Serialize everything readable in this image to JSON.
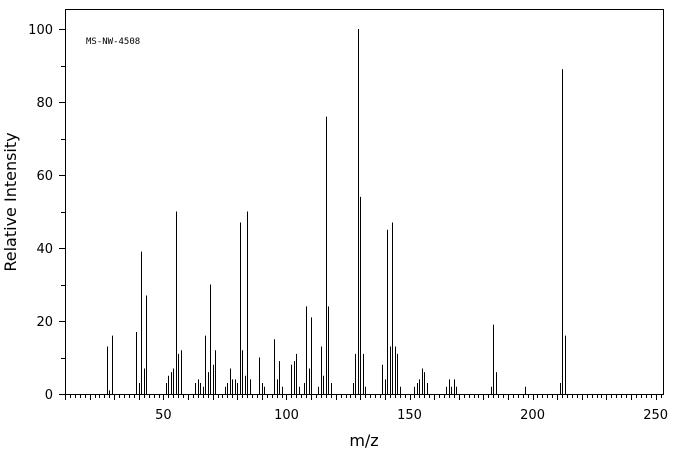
{
  "chart_data": {
    "type": "bar",
    "subtype": "mass-spectrum-stick",
    "annotation": "MS-NW-4508",
    "xlabel": "m/z",
    "ylabel": "Relative Intensity",
    "xlim": [
      10,
      253
    ],
    "ylim": [
      0,
      100
    ],
    "xticks": [
      50,
      100,
      150,
      200,
      250
    ],
    "xtick_labels": [
      "50",
      "100",
      "150",
      "200",
      "250"
    ],
    "yticks": [
      0,
      20,
      40,
      60,
      80,
      100
    ],
    "ytick_labels": [
      "0",
      "20",
      "40",
      "60",
      "80",
      "100"
    ],
    "grid": false,
    "points": [
      {
        "x": 27,
        "y": 13
      },
      {
        "x": 28,
        "y": 1
      },
      {
        "x": 29,
        "y": 16
      },
      {
        "x": 39,
        "y": 17
      },
      {
        "x": 40,
        "y": 3
      },
      {
        "x": 41,
        "y": 39
      },
      {
        "x": 42,
        "y": 7
      },
      {
        "x": 43,
        "y": 27
      },
      {
        "x": 51,
        "y": 3
      },
      {
        "x": 52,
        "y": 5
      },
      {
        "x": 53,
        "y": 6
      },
      {
        "x": 54,
        "y": 7
      },
      {
        "x": 55,
        "y": 50
      },
      {
        "x": 56,
        "y": 11
      },
      {
        "x": 57,
        "y": 12
      },
      {
        "x": 63,
        "y": 3
      },
      {
        "x": 64,
        "y": 4
      },
      {
        "x": 65,
        "y": 3
      },
      {
        "x": 66,
        "y": 2
      },
      {
        "x": 67,
        "y": 16
      },
      {
        "x": 68,
        "y": 6
      },
      {
        "x": 69,
        "y": 30
      },
      {
        "x": 70,
        "y": 8
      },
      {
        "x": 71,
        "y": 12
      },
      {
        "x": 75,
        "y": 2
      },
      {
        "x": 76,
        "y": 3
      },
      {
        "x": 77,
        "y": 7
      },
      {
        "x": 78,
        "y": 4
      },
      {
        "x": 79,
        "y": 4
      },
      {
        "x": 80,
        "y": 3
      },
      {
        "x": 81,
        "y": 47
      },
      {
        "x": 82,
        "y": 12
      },
      {
        "x": 83,
        "y": 5
      },
      {
        "x": 84,
        "y": 50
      },
      {
        "x": 85,
        "y": 4
      },
      {
        "x": 89,
        "y": 10
      },
      {
        "x": 90,
        "y": 3
      },
      {
        "x": 91,
        "y": 2
      },
      {
        "x": 95,
        "y": 15
      },
      {
        "x": 96,
        "y": 4
      },
      {
        "x": 97,
        "y": 9
      },
      {
        "x": 98,
        "y": 2
      },
      {
        "x": 102,
        "y": 8
      },
      {
        "x": 103,
        "y": 9
      },
      {
        "x": 104,
        "y": 11
      },
      {
        "x": 105,
        "y": 2
      },
      {
        "x": 107,
        "y": 3
      },
      {
        "x": 108,
        "y": 24
      },
      {
        "x": 109,
        "y": 7
      },
      {
        "x": 110,
        "y": 21
      },
      {
        "x": 113,
        "y": 2
      },
      {
        "x": 114,
        "y": 13
      },
      {
        "x": 115,
        "y": 5
      },
      {
        "x": 116,
        "y": 76
      },
      {
        "x": 117,
        "y": 24
      },
      {
        "x": 118,
        "y": 3
      },
      {
        "x": 127,
        "y": 3
      },
      {
        "x": 128,
        "y": 11
      },
      {
        "x": 129,
        "y": 100
      },
      {
        "x": 130,
        "y": 54
      },
      {
        "x": 131,
        "y": 11
      },
      {
        "x": 132,
        "y": 2
      },
      {
        "x": 139,
        "y": 8
      },
      {
        "x": 140,
        "y": 4
      },
      {
        "x": 141,
        "y": 45
      },
      {
        "x": 142,
        "y": 13
      },
      {
        "x": 143,
        "y": 47
      },
      {
        "x": 144,
        "y": 13
      },
      {
        "x": 145,
        "y": 11
      },
      {
        "x": 146,
        "y": 2
      },
      {
        "x": 152,
        "y": 2
      },
      {
        "x": 153,
        "y": 3
      },
      {
        "x": 154,
        "y": 4
      },
      {
        "x": 155,
        "y": 7
      },
      {
        "x": 156,
        "y": 6
      },
      {
        "x": 157,
        "y": 3
      },
      {
        "x": 165,
        "y": 2
      },
      {
        "x": 166,
        "y": 4
      },
      {
        "x": 167,
        "y": 2
      },
      {
        "x": 168,
        "y": 4
      },
      {
        "x": 169,
        "y": 2
      },
      {
        "x": 183,
        "y": 2
      },
      {
        "x": 184,
        "y": 19
      },
      {
        "x": 185,
        "y": 6
      },
      {
        "x": 197,
        "y": 2
      },
      {
        "x": 211,
        "y": 3
      },
      {
        "x": 212,
        "y": 89
      },
      {
        "x": 213,
        "y": 16
      }
    ]
  }
}
